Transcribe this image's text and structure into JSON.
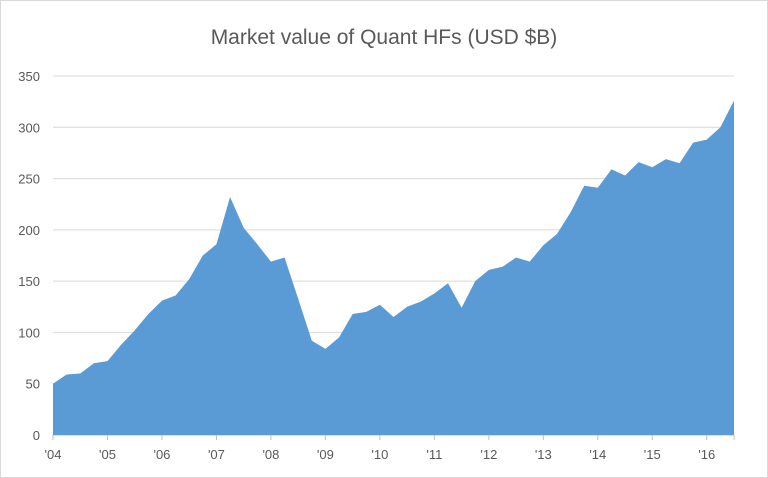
{
  "chart_data": {
    "type": "area",
    "title": "Market value of Quant HFs (USD $B)",
    "xlabel": "",
    "ylabel": "",
    "ylim": [
      0,
      350
    ],
    "yticks": [
      0,
      50,
      100,
      150,
      200,
      250,
      300,
      350
    ],
    "xlim": [
      2004,
      2016.5
    ],
    "xticks": [
      {
        "label": "'04",
        "x": 2004
      },
      {
        "label": "'05",
        "x": 2005
      },
      {
        "label": "'06",
        "x": 2006
      },
      {
        "label": "'07",
        "x": 2007
      },
      {
        "label": "'08",
        "x": 2008
      },
      {
        "label": "'09",
        "x": 2009
      },
      {
        "label": "'10",
        "x": 2010
      },
      {
        "label": "'11",
        "x": 2011
      },
      {
        "label": "'12",
        "x": 2012
      },
      {
        "label": "'13",
        "x": 2013
      },
      {
        "label": "'14",
        "x": 2014
      },
      {
        "label": "'15",
        "x": 2015
      },
      {
        "label": "'16",
        "x": 2016
      }
    ],
    "grid": true,
    "legend": "none",
    "color": "#5b9bd5",
    "x": [
      2004.0,
      2004.25,
      2004.5,
      2004.75,
      2005.0,
      2005.25,
      2005.5,
      2005.75,
      2006.0,
      2006.25,
      2006.5,
      2006.75,
      2007.0,
      2007.25,
      2007.5,
      2007.75,
      2008.0,
      2008.25,
      2008.5,
      2008.75,
      2009.0,
      2009.25,
      2009.5,
      2009.75,
      2010.0,
      2010.25,
      2010.5,
      2010.75,
      2011.0,
      2011.25,
      2011.5,
      2011.75,
      2012.0,
      2012.25,
      2012.5,
      2012.75,
      2013.0,
      2013.25,
      2013.5,
      2013.75,
      2014.0,
      2014.25,
      2014.5,
      2014.75,
      2015.0,
      2015.25,
      2015.5,
      2015.75,
      2016.0,
      2016.25,
      2016.5
    ],
    "values": [
      50,
      59,
      60,
      70,
      72,
      88,
      102,
      118,
      131,
      136,
      152,
      175,
      186,
      232,
      202,
      186,
      169,
      173,
      133,
      92,
      84,
      95,
      118,
      120,
      127,
      115,
      125,
      130,
      138,
      148,
      124,
      150,
      161,
      164,
      173,
      169,
      185,
      196,
      217,
      243,
      241,
      259,
      253,
      266,
      261,
      269,
      265,
      285,
      288,
      300,
      326
    ]
  }
}
